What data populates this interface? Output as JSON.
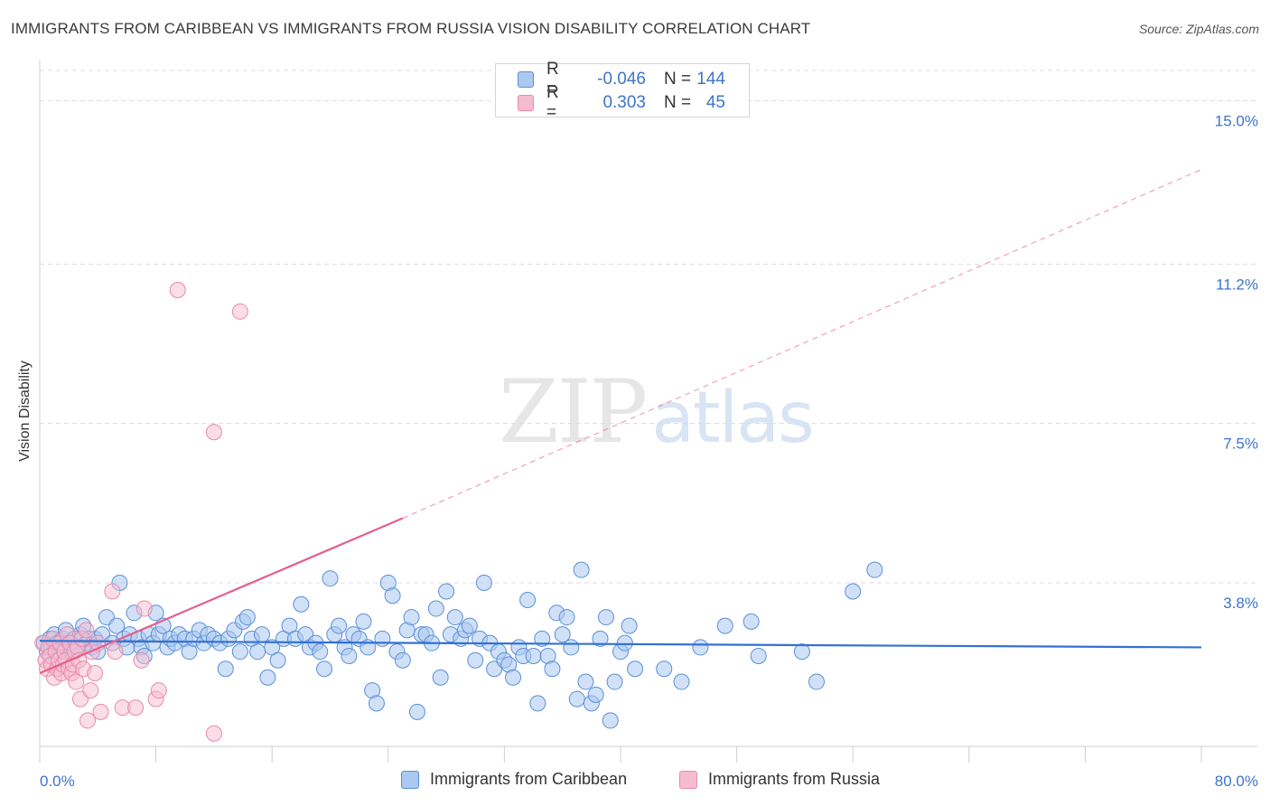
{
  "header": {
    "title": "IMMIGRANTS FROM CARIBBEAN VS IMMIGRANTS FROM RUSSIA VISION DISABILITY CORRELATION CHART",
    "source": "Source: ZipAtlas.com"
  },
  "watermark": {
    "zip": "ZIP",
    "atlas": "atlas"
  },
  "legend": {
    "rows": [
      {
        "r_label": "R =",
        "r_value": "-0.046",
        "n_label": "N =",
        "n_value": "144"
      },
      {
        "r_label": "R =",
        "r_value": "0.303",
        "n_label": "N =",
        "n_value": "45"
      }
    ]
  },
  "colors": {
    "caribbean_fill": "#aac8f0",
    "caribbean_stroke": "#5b8fd8",
    "caribbean_line": "#3371d2",
    "russia_fill": "#f5bcd0",
    "russia_stroke": "#e98aa9",
    "russia_line": "#e4608a",
    "axis_value": "#3d74c9"
  },
  "chart_data": {
    "type": "scatter",
    "title": "IMMIGRANTS FROM CARIBBEAN VS IMMIGRANTS FROM RUSSIA VISION DISABILITY CORRELATION CHART",
    "xlabel": "",
    "ylabel": "Vision Disability",
    "xlim": [
      0,
      80
    ],
    "ylim": [
      0,
      15.7
    ],
    "x_tick_labels": [
      "0.0%",
      "80.0%"
    ],
    "y_ticks": [
      {
        "value": 3.8,
        "label": "3.8%"
      },
      {
        "value": 7.5,
        "label": "7.5%"
      },
      {
        "value": 11.2,
        "label": "11.2%"
      },
      {
        "value": 15.0,
        "label": "15.0%"
      }
    ],
    "series": [
      {
        "name": "Immigrants from Caribbean",
        "r": -0.046,
        "n": 144,
        "trend": {
          "x": [
            0,
            80
          ],
          "y": [
            2.45,
            2.3
          ]
        },
        "points": [
          [
            0.3,
            2.4
          ],
          [
            0.5,
            2.2
          ],
          [
            0.7,
            2.5
          ],
          [
            0.8,
            2.3
          ],
          [
            1.0,
            2.6
          ],
          [
            1.2,
            2.4
          ],
          [
            1.4,
            2.2
          ],
          [
            1.6,
            2.5
          ],
          [
            1.8,
            2.7
          ],
          [
            2.0,
            2.4
          ],
          [
            2.2,
            2.2
          ],
          [
            2.4,
            2.5
          ],
          [
            2.6,
            2.3
          ],
          [
            2.8,
            2.6
          ],
          [
            3.0,
            2.8
          ],
          [
            3.2,
            2.4
          ],
          [
            3.4,
            2.5
          ],
          [
            3.6,
            2.3
          ],
          [
            3.8,
            2.5
          ],
          [
            4.0,
            2.2
          ],
          [
            4.3,
            2.6
          ],
          [
            4.6,
            3.0
          ],
          [
            5.0,
            2.4
          ],
          [
            5.3,
            2.8
          ],
          [
            5.5,
            3.8
          ],
          [
            5.8,
            2.5
          ],
          [
            6.0,
            2.3
          ],
          [
            6.2,
            2.6
          ],
          [
            6.5,
            3.1
          ],
          [
            6.8,
            2.5
          ],
          [
            7.0,
            2.3
          ],
          [
            7.2,
            2.1
          ],
          [
            7.5,
            2.6
          ],
          [
            7.8,
            2.4
          ],
          [
            8.0,
            3.1
          ],
          [
            8.2,
            2.6
          ],
          [
            8.5,
            2.8
          ],
          [
            8.8,
            2.3
          ],
          [
            9.0,
            2.5
          ],
          [
            9.3,
            2.4
          ],
          [
            9.6,
            2.6
          ],
          [
            10.0,
            2.5
          ],
          [
            10.3,
            2.2
          ],
          [
            10.6,
            2.5
          ],
          [
            11.0,
            2.7
          ],
          [
            11.3,
            2.4
          ],
          [
            11.6,
            2.6
          ],
          [
            12.0,
            2.5
          ],
          [
            12.4,
            2.4
          ],
          [
            12.8,
            1.8
          ],
          [
            13.0,
            2.5
          ],
          [
            13.4,
            2.7
          ],
          [
            13.8,
            2.2
          ],
          [
            14.0,
            2.9
          ],
          [
            14.3,
            3.0
          ],
          [
            14.6,
            2.5
          ],
          [
            15.0,
            2.2
          ],
          [
            15.3,
            2.6
          ],
          [
            15.7,
            1.6
          ],
          [
            16.0,
            2.3
          ],
          [
            16.4,
            2.0
          ],
          [
            16.8,
            2.5
          ],
          [
            17.2,
            2.8
          ],
          [
            17.6,
            2.5
          ],
          [
            18.0,
            3.3
          ],
          [
            18.3,
            2.6
          ],
          [
            18.6,
            2.3
          ],
          [
            19.0,
            2.4
          ],
          [
            19.3,
            2.2
          ],
          [
            19.6,
            1.8
          ],
          [
            20.0,
            3.9
          ],
          [
            20.3,
            2.6
          ],
          [
            20.6,
            2.8
          ],
          [
            21.0,
            2.3
          ],
          [
            21.3,
            2.1
          ],
          [
            21.6,
            2.6
          ],
          [
            22.0,
            2.5
          ],
          [
            22.3,
            2.9
          ],
          [
            22.6,
            2.3
          ],
          [
            22.9,
            1.3
          ],
          [
            23.2,
            1.0
          ],
          [
            23.6,
            2.5
          ],
          [
            24.0,
            3.8
          ],
          [
            24.3,
            3.5
          ],
          [
            24.6,
            2.2
          ],
          [
            25.0,
            2.0
          ],
          [
            25.3,
            2.7
          ],
          [
            25.6,
            3.0
          ],
          [
            26.0,
            0.8
          ],
          [
            26.3,
            2.6
          ],
          [
            26.6,
            2.6
          ],
          [
            27.0,
            2.4
          ],
          [
            27.3,
            3.2
          ],
          [
            27.6,
            1.6
          ],
          [
            28.0,
            3.6
          ],
          [
            28.3,
            2.6
          ],
          [
            28.6,
            3.0
          ],
          [
            29.0,
            2.5
          ],
          [
            29.3,
            2.7
          ],
          [
            29.6,
            2.8
          ],
          [
            30.0,
            2.0
          ],
          [
            30.3,
            2.5
          ],
          [
            30.6,
            3.8
          ],
          [
            31.0,
            2.4
          ],
          [
            31.3,
            1.8
          ],
          [
            31.6,
            2.2
          ],
          [
            32.0,
            2.0
          ],
          [
            32.3,
            1.9
          ],
          [
            32.6,
            1.6
          ],
          [
            33.0,
            2.3
          ],
          [
            33.3,
            2.1
          ],
          [
            33.6,
            3.4
          ],
          [
            34.0,
            2.1
          ],
          [
            34.3,
            1.0
          ],
          [
            34.6,
            2.5
          ],
          [
            35.0,
            2.1
          ],
          [
            35.3,
            1.8
          ],
          [
            35.6,
            3.1
          ],
          [
            36.0,
            2.6
          ],
          [
            36.3,
            3.0
          ],
          [
            36.6,
            2.3
          ],
          [
            37.0,
            1.1
          ],
          [
            37.3,
            4.1
          ],
          [
            37.6,
            1.5
          ],
          [
            38.0,
            1.0
          ],
          [
            38.3,
            1.2
          ],
          [
            38.6,
            2.5
          ],
          [
            39.0,
            3.0
          ],
          [
            39.3,
            0.6
          ],
          [
            39.6,
            1.5
          ],
          [
            40.0,
            2.2
          ],
          [
            40.3,
            2.4
          ],
          [
            40.6,
            2.8
          ],
          [
            41.0,
            1.8
          ],
          [
            43.0,
            1.8
          ],
          [
            44.2,
            1.5
          ],
          [
            45.5,
            2.3
          ],
          [
            47.2,
            2.8
          ],
          [
            49.0,
            2.9
          ],
          [
            49.5,
            2.1
          ],
          [
            52.5,
            2.2
          ],
          [
            53.5,
            1.5
          ],
          [
            56.0,
            3.6
          ],
          [
            57.5,
            4.1
          ]
        ]
      },
      {
        "name": "Immigrants from Russia",
        "r": 0.303,
        "n": 45,
        "trend": {
          "x": [
            0,
            25
          ],
          "y": [
            1.7,
            5.3
          ]
        },
        "trend_extended": {
          "x": [
            25,
            80
          ],
          "y": [
            5.3,
            13.4
          ]
        },
        "points": [
          [
            0.2,
            2.4
          ],
          [
            0.4,
            2.0
          ],
          [
            0.5,
            1.8
          ],
          [
            0.6,
            2.3
          ],
          [
            0.7,
            2.1
          ],
          [
            0.8,
            1.9
          ],
          [
            0.9,
            2.5
          ],
          [
            1.0,
            1.6
          ],
          [
            1.1,
            2.2
          ],
          [
            1.2,
            1.8
          ],
          [
            1.3,
            2.0
          ],
          [
            1.4,
            2.4
          ],
          [
            1.5,
            1.7
          ],
          [
            1.6,
            1.9
          ],
          [
            1.7,
            2.2
          ],
          [
            1.8,
            2.0
          ],
          [
            1.9,
            2.6
          ],
          [
            2.0,
            1.8
          ],
          [
            2.1,
            2.4
          ],
          [
            2.2,
            1.7
          ],
          [
            2.3,
            1.9
          ],
          [
            2.4,
            2.2
          ],
          [
            2.5,
            1.5
          ],
          [
            2.6,
            2.3
          ],
          [
            2.7,
            2.0
          ],
          [
            2.8,
            1.1
          ],
          [
            2.9,
            2.5
          ],
          [
            3.0,
            1.8
          ],
          [
            3.2,
            2.7
          ],
          [
            3.3,
            0.6
          ],
          [
            3.5,
            1.3
          ],
          [
            3.6,
            2.2
          ],
          [
            3.8,
            1.7
          ],
          [
            4.0,
            2.4
          ],
          [
            4.2,
            0.8
          ],
          [
            5.0,
            3.6
          ],
          [
            5.2,
            2.2
          ],
          [
            5.7,
            0.9
          ],
          [
            6.6,
            0.9
          ],
          [
            7.0,
            2.0
          ],
          [
            7.2,
            3.2
          ],
          [
            8.0,
            1.1
          ],
          [
            8.2,
            1.3
          ],
          [
            9.5,
            10.6
          ],
          [
            12.0,
            0.3
          ]
        ],
        "outliers": [
          [
            13.8,
            10.1
          ],
          [
            12.0,
            7.3
          ]
        ]
      }
    ]
  },
  "bottom_legend": {
    "caribbean": "Immigrants from Caribbean",
    "russia": "Immigrants from Russia"
  }
}
